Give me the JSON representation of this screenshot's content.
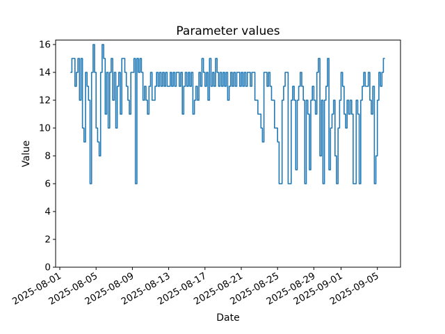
{
  "chart_data": {
    "type": "line",
    "title": "Parameter values",
    "xlabel": "Date",
    "ylabel": "Value",
    "grid": false,
    "legend": false,
    "background_color": "#ffffff",
    "line_color": "#1f77b4",
    "line_width": 1.6,
    "spine_color": "#000000",
    "ylim": [
      0,
      16.32
    ],
    "y_ticks": [
      0,
      2,
      4,
      6,
      8,
      10,
      12,
      14,
      16
    ],
    "x_epoch": "2025-08-01",
    "xlim_day_offsets": [
      -0.46,
      37.55
    ],
    "x_tick_day_offsets": [
      0,
      4,
      8,
      12,
      16,
      20,
      24,
      28,
      31,
      35
    ],
    "x_tick_labels": [
      "2025-08-01",
      "2025-08-05",
      "2025-08-09",
      "2025-08-13",
      "2025-08-17",
      "2025-08-21",
      "2025-08-25",
      "2025-08-29",
      "2025-09-01",
      "2025-09-05"
    ],
    "series": [
      {
        "name": "Parameter values",
        "start_day_offset": 1.1667,
        "step_days": 0.16667,
        "values": [
          14,
          15,
          15,
          13,
          14,
          15,
          12,
          15,
          10,
          9,
          14,
          13,
          12,
          6,
          14,
          16,
          14,
          10,
          9,
          8,
          14,
          16,
          15,
          11,
          14,
          10,
          14,
          15,
          12,
          14,
          10,
          13,
          14,
          11,
          15,
          15,
          14,
          13,
          12,
          11,
          14,
          14,
          15,
          6,
          15,
          14,
          15,
          14,
          12,
          13,
          12,
          11,
          13,
          14,
          12,
          12,
          13,
          14,
          13,
          14,
          13,
          14,
          13,
          14,
          13,
          13,
          14,
          13,
          14,
          13,
          14,
          14,
          13,
          14,
          11,
          13,
          14,
          13,
          14,
          13,
          14,
          11,
          12,
          13,
          12,
          14,
          13,
          15,
          14,
          13,
          14,
          12,
          15,
          13,
          14,
          13,
          15,
          14,
          13,
          14,
          13,
          14,
          13,
          14,
          12,
          13,
          14,
          13,
          14,
          13,
          14,
          14,
          13,
          14,
          13,
          14,
          13,
          14,
          14,
          13,
          14,
          14,
          12,
          12,
          11,
          11,
          10,
          9,
          14,
          14,
          13,
          14,
          13,
          12,
          12,
          10,
          10,
          9,
          6,
          6,
          12,
          13,
          14,
          14,
          6,
          6,
          12,
          13,
          12,
          7,
          12,
          13,
          14,
          13,
          12,
          6,
          12,
          11,
          7,
          12,
          13,
          12,
          11,
          14,
          15,
          8,
          12,
          6,
          12,
          13,
          15,
          7,
          10,
          11,
          12,
          8,
          6,
          10,
          12,
          14,
          13,
          11,
          10,
          12,
          11,
          12,
          11,
          6,
          6,
          12,
          11,
          6,
          12,
          13,
          14,
          13,
          13,
          14,
          12,
          11,
          13,
          6,
          8,
          12,
          14,
          13,
          14,
          15,
          15
        ]
      }
    ]
  }
}
